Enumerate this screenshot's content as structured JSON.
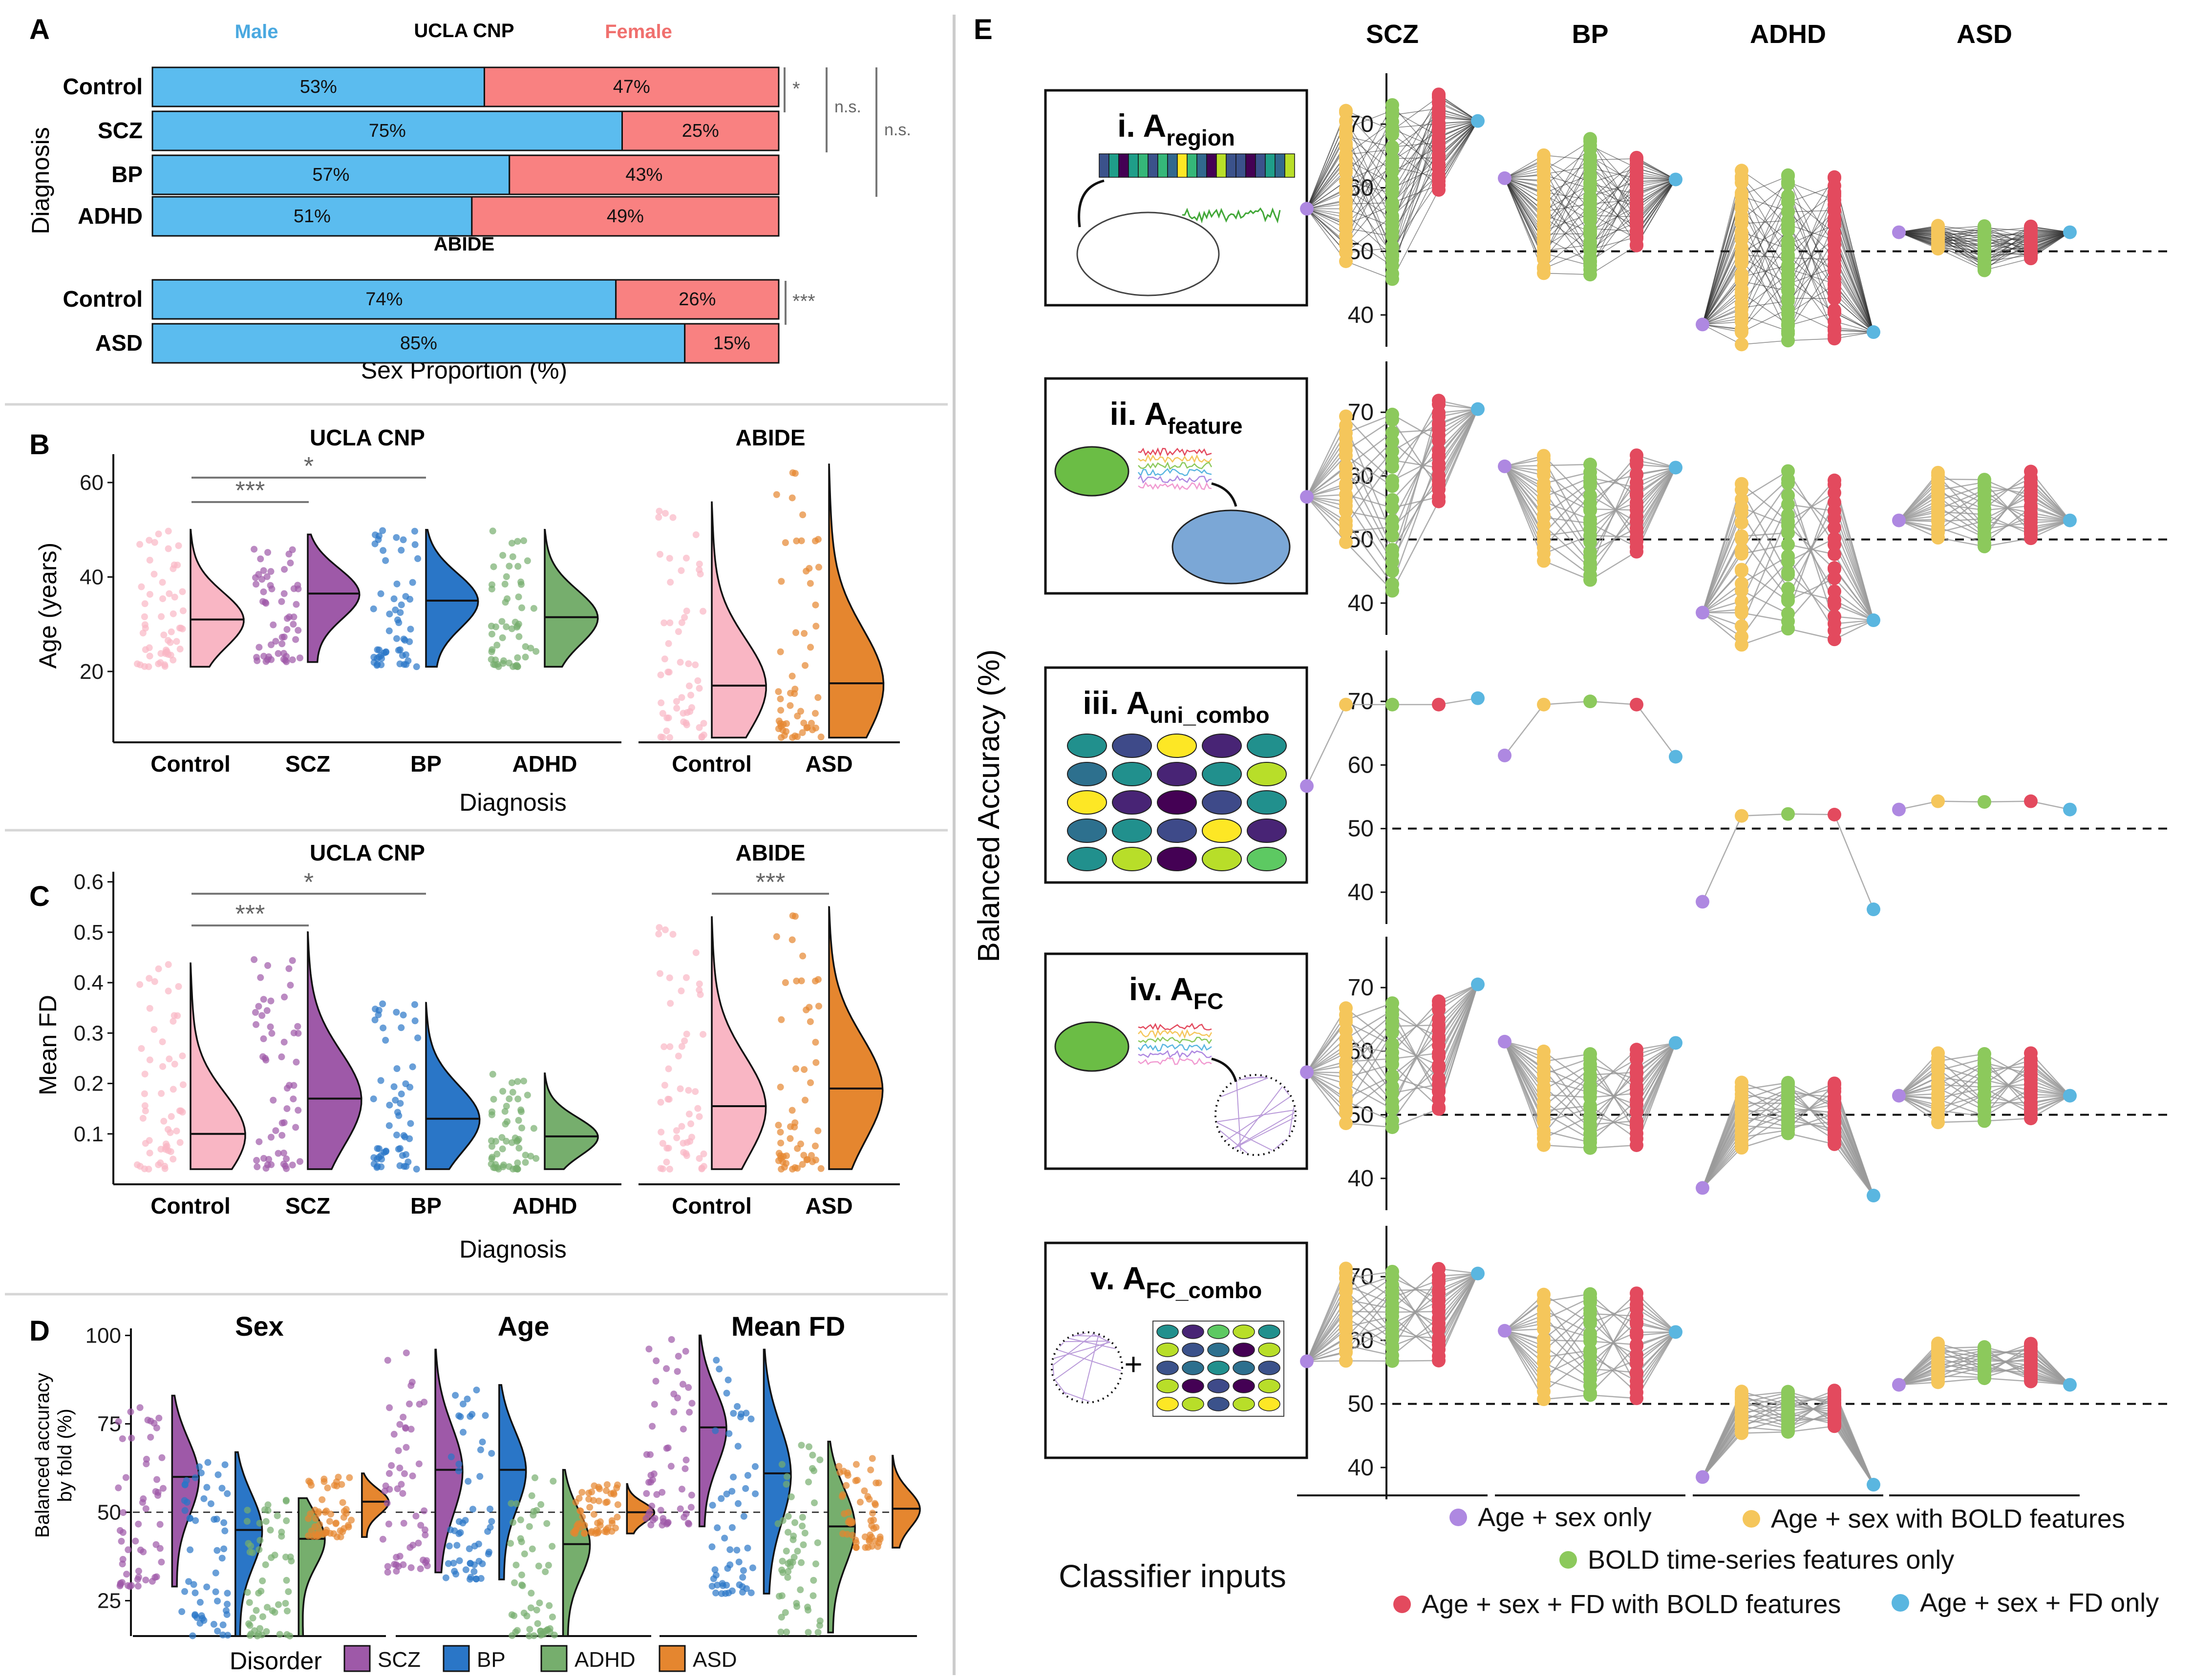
{
  "colors": {
    "male": "#5bbcef",
    "female": "#f98181",
    "control": "#f9b6c4",
    "scz": "#9e59a8",
    "bp": "#2a76c7",
    "adhd": "#76ae6d",
    "asd": "#e5862f",
    "age_sex": "#ae88e1",
    "age_sex_bold": "#f5c65b",
    "bold_only": "#8cc95c",
    "age_sex_fd_bold": "#e34a5e",
    "age_sex_fd": "#5ab6e0"
  },
  "panelA": {
    "letter": "A",
    "headers": {
      "male": "Male",
      "ucla": "UCLA CNP",
      "female": "Female",
      "abide": "ABIDE"
    },
    "ylabel": "Diagnosis",
    "xlabel": "Sex Proportion (%)",
    "sig": {
      "control_scz": "*",
      "control_bp": "n.s.",
      "control_adhd": "n.s.",
      "abide": "***"
    }
  },
  "panelB": {
    "letter": "B",
    "sub_ucla": "UCLA CNP",
    "sub_abide": "ABIDE",
    "ylabel": "Age (years)",
    "xlabel": "Diagnosis",
    "yticks": [
      "20",
      "40",
      "60"
    ],
    "sig1": "***",
    "sig2": "*"
  },
  "panelC": {
    "letter": "C",
    "sub_ucla": "UCLA CNP",
    "sub_abide": "ABIDE",
    "ylabel": "Mean FD",
    "xlabel": "Diagnosis",
    "yticks": [
      "0.1",
      "0.2",
      "0.3",
      "0.4",
      "0.5",
      "0.6"
    ],
    "sig1": "***",
    "sig2": "*",
    "sig3": "***"
  },
  "panelD": {
    "letter": "D",
    "ylabel1": "Balanced accuracy",
    "ylabel2": "by fold (%)",
    "yticks": [
      "25",
      "50",
      "75",
      "100"
    ],
    "subtitles": [
      "Sex",
      "Age",
      "Mean FD"
    ],
    "legend_title": "Disorder",
    "legend": [
      "SCZ",
      "BP",
      "ADHD",
      "ASD"
    ]
  },
  "panelE": {
    "letter": "E",
    "columns": [
      "SCZ",
      "BP",
      "ADHD",
      "ASD"
    ],
    "ylabel": "Balanced Accuracy (%)",
    "yticks": [
      "40",
      "50",
      "60",
      "70"
    ],
    "rows": [
      {
        "prefix": "i. A",
        "sub": "region"
      },
      {
        "prefix": "ii. A",
        "sub": "feature"
      },
      {
        "prefix": "iii. A",
        "sub": "uni_combo"
      },
      {
        "prefix": "iv. A",
        "sub": "FC"
      },
      {
        "prefix": "v. A",
        "sub": "FC_combo"
      }
    ],
    "plus": "+",
    "classifier_label": "Classifier inputs",
    "legend": [
      "Age + sex only",
      "Age + sex with BOLD features",
      "BOLD time-series features only",
      "Age + sex + FD with BOLD features",
      "Age + sex + FD only"
    ]
  },
  "chart_data": [
    {
      "panel": "A",
      "type": "bar",
      "stacked": true,
      "orientation": "horizontal",
      "xlabel": "Sex Proportion (%)",
      "ylabel": "Diagnosis",
      "groups": [
        {
          "name": "UCLA CNP",
          "categories": [
            "Control",
            "SCZ",
            "BP",
            "ADHD"
          ],
          "series": [
            {
              "name": "Male",
              "values": [
                53,
                75,
                57,
                51
              ]
            },
            {
              "name": "Female",
              "values": [
                47,
                25,
                43,
                49
              ]
            }
          ]
        },
        {
          "name": "ABIDE",
          "categories": [
            "Control",
            "ASD"
          ],
          "series": [
            {
              "name": "Male",
              "values": [
                74,
                85
              ]
            },
            {
              "name": "Female",
              "values": [
                26,
                15
              ]
            }
          ]
        }
      ]
    },
    {
      "panel": "B",
      "type": "scatter",
      "ylabel": "Age (years)",
      "xlabel": "Diagnosis",
      "groups": [
        {
          "name": "UCLA CNP",
          "categories": [
            "Control",
            "SCZ",
            "BP",
            "ADHD"
          ],
          "medians": [
            31,
            36.5,
            35,
            31.5
          ],
          "ranges": [
            [
              21,
              50
            ],
            [
              22,
              49
            ],
            [
              21,
              50
            ],
            [
              21,
              50
            ]
          ]
        },
        {
          "name": "ABIDE",
          "categories": [
            "Control",
            "ASD"
          ],
          "medians": [
            17,
            17.5
          ],
          "ranges": [
            [
              6,
              56
            ],
            [
              6,
              64
            ]
          ]
        }
      ],
      "ylim": [
        5,
        66
      ]
    },
    {
      "panel": "C",
      "type": "scatter",
      "ylabel": "Mean FD",
      "xlabel": "Diagnosis",
      "groups": [
        {
          "name": "UCLA CNP",
          "categories": [
            "Control",
            "SCZ",
            "BP",
            "ADHD"
          ],
          "medians": [
            0.1,
            0.17,
            0.13,
            0.095
          ],
          "ranges": [
            [
              0.03,
              0.44
            ],
            [
              0.03,
              0.5
            ],
            [
              0.03,
              0.36
            ],
            [
              0.03,
              0.22
            ]
          ]
        },
        {
          "name": "ABIDE",
          "categories": [
            "Control",
            "ASD"
          ],
          "medians": [
            0.155,
            0.19
          ],
          "ranges": [
            [
              0.03,
              0.53
            ],
            [
              0.03,
              0.55
            ]
          ]
        }
      ],
      "ylim": [
        0,
        0.62
      ]
    },
    {
      "panel": "D",
      "type": "scatter",
      "ylabel": "Balanced accuracy by fold (%)",
      "facets": [
        {
          "name": "Sex",
          "categories": [
            "SCZ",
            "BP",
            "ADHD",
            "ASD"
          ],
          "medians": [
            60,
            45,
            42.5,
            53
          ],
          "ranges": [
            [
              29,
              83
            ],
            [
              15,
              67
            ],
            [
              15,
              54
            ],
            [
              43,
              61
            ]
          ]
        },
        {
          "name": "Age",
          "categories": [
            "SCZ",
            "BP",
            "ADHD",
            "ASD"
          ],
          "medians": [
            62,
            62,
            41,
            50
          ],
          "ranges": [
            [
              33,
              96
            ],
            [
              31,
              86
            ],
            [
              15,
              62
            ],
            [
              44,
              58
            ]
          ]
        },
        {
          "name": "Mean FD",
          "categories": [
            "SCZ",
            "BP",
            "ADHD",
            "ASD"
          ],
          "medians": [
            74,
            61,
            46,
            51
          ],
          "ranges": [
            [
              46,
              100
            ],
            [
              27,
              96
            ],
            [
              16,
              70
            ],
            [
              40,
              66
            ]
          ]
        }
      ],
      "ylim": [
        15,
        102
      ],
      "reference_line": 50
    },
    {
      "panel": "E",
      "type": "line",
      "ylabel": "Balanced Accuracy (%)",
      "reference_line": 50,
      "ylim": [
        35,
        78
      ],
      "columns": [
        "SCZ",
        "BP",
        "ADHD",
        "ASD"
      ],
      "x": [
        "Age + sex only",
        "Age + sex with BOLD features",
        "BOLD time-series features only",
        "Age + sex + FD with BOLD features",
        "Age + sex + FD only"
      ],
      "age_sex_only": [
        56.7,
        61.5,
        38.5,
        53
      ],
      "age_sex_fd_only": [
        70.5,
        61.3,
        37.3,
        53
      ],
      "rows": [
        {
          "name": "i. A region",
          "ranges": {
            "SCZ": [
              [
                49,
                72
              ],
              [
                46,
                72.5
              ],
              [
                60,
                75
              ]
            ],
            "BP": [
              [
                47,
                65
              ],
              [
                46.5,
                67.5
              ],
              [
                51,
                65
              ]
            ],
            "ADHD": [
              [
                36,
                62.5
              ],
              [
                36,
                62
              ],
              [
                36,
                62
              ]
            ],
            "ASD": [
              [
                50.5,
                54
              ],
              [
                47,
                54
              ],
              [
                49,
                54
              ]
            ]
          }
        },
        {
          "name": "ii. A feature",
          "ranges": {
            "SCZ": [
              [
                50,
                69
              ],
              [
                41.5,
                70
              ],
              [
                56,
                72
              ]
            ],
            "BP": [
              [
                47,
                63.5
              ],
              [
                43.5,
                62
              ],
              [
                48,
                63
              ]
            ],
            "ADHD": [
              [
                34,
                59
              ],
              [
                36,
                61
              ],
              [
                34,
                59.5
              ]
            ],
            "ASD": [
              [
                50.5,
                60.5
              ],
              [
                49,
                59.5
              ],
              [
                50,
                60.5
              ]
            ]
          }
        },
        {
          "name": "iii. A uni_combo",
          "ranges": {
            "SCZ": [
              [
                69.5,
                69.5
              ],
              [
                69.5,
                69.5
              ],
              [
                69.5,
                69.5
              ]
            ],
            "BP": [
              [
                69.5,
                69.5
              ],
              [
                70,
                70
              ],
              [
                69.5,
                69.5
              ]
            ],
            "ADHD": [
              [
                52,
                52
              ],
              [
                52.3,
                52.3
              ],
              [
                52.2,
                52.2
              ]
            ],
            "ASD": [
              [
                54.3,
                54.3
              ],
              [
                54.2,
                54.2
              ],
              [
                54.3,
                54.3
              ]
            ]
          }
        },
        {
          "name": "iv. A FC",
          "ranges": {
            "SCZ": [
              [
                49,
                67
              ],
              [
                48.5,
                67.5
              ],
              [
                50.5,
                68
              ]
            ],
            "BP": [
              [
                45.5,
                60
              ],
              [
                44.5,
                59.5
              ],
              [
                45.5,
                60
              ]
            ],
            "ADHD": [
              [
                45,
                55
              ],
              [
                47,
                55
              ],
              [
                45.5,
                55
              ]
            ],
            "ASD": [
              [
                49,
                59.5
              ],
              [
                49,
                59.5
              ],
              [
                49.5,
                59.5
              ]
            ]
          }
        },
        {
          "name": "v. A FC_combo",
          "ranges": {
            "SCZ": [
              [
                57,
                71
              ],
              [
                57,
                71
              ],
              [
                57,
                71
              ]
            ],
            "BP": [
              [
                51,
                67.5
              ],
              [
                51,
                67.5
              ],
              [
                51,
                67.5
              ]
            ],
            "ADHD": [
              [
                45.5,
                52
              ],
              [
                45.5,
                52
              ],
              [
                46.5,
                52
              ]
            ],
            "ASD": [
              [
                53.5,
                59.5
              ],
              [
                54,
                59
              ],
              [
                53.5,
                59.5
              ]
            ]
          }
        }
      ]
    }
  ]
}
